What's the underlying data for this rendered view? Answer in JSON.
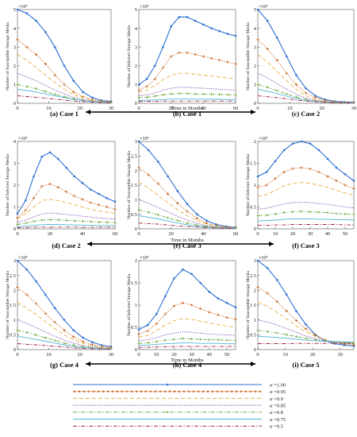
{
  "figure": {
    "time_label": "Time in Months",
    "legend": {
      "symbol": "α",
      "entries": [
        {
          "value": "=1.00",
          "color": "#2e6fd3",
          "style": "solid-circle"
        },
        {
          "value": "=0.95",
          "color": "#c55a11",
          "style": "dot-star"
        },
        {
          "value": "=0.9",
          "color": "#e8b040",
          "style": "dash"
        },
        {
          "value": "=0.85",
          "color": "#7030a0",
          "style": "dot"
        },
        {
          "value": "=0.8",
          "color": "#70ad47",
          "style": "dashdot-star"
        },
        {
          "value": "=0.75",
          "color": "#4fb6d8",
          "style": "solid"
        },
        {
          "value": "=0.5",
          "color": "#a02040",
          "style": "dashdot"
        }
      ]
    }
  },
  "chart_data": [
    {
      "id": "a",
      "caption": "(a) Case 1",
      "type": "line",
      "ylabel": "Number of Susceptible Storage Media",
      "exponent": "×10⁴",
      "xlim": [
        0,
        30
      ],
      "ylim": [
        0,
        5
      ],
      "xticks": [
        0,
        10,
        20,
        30
      ],
      "yticks": [
        0,
        1,
        2,
        3,
        4,
        5
      ],
      "kind": "decay",
      "x": [
        0,
        3,
        6,
        9,
        12,
        15,
        18,
        21,
        24,
        27,
        30
      ],
      "series": [
        [
          5.0,
          4.8,
          4.4,
          3.8,
          3.0,
          2.0,
          1.2,
          0.6,
          0.3,
          0.15,
          0.1
        ],
        [
          3.4,
          3.0,
          2.6,
          2.1,
          1.5,
          1.0,
          0.6,
          0.35,
          0.2,
          0.12,
          0.08
        ],
        [
          2.6,
          2.3,
          1.9,
          1.5,
          1.1,
          0.75,
          0.45,
          0.3,
          0.18,
          0.1,
          0.07
        ],
        [
          1.6,
          1.4,
          1.2,
          0.95,
          0.7,
          0.5,
          0.32,
          0.2,
          0.13,
          0.08,
          0.05
        ],
        [
          1.0,
          0.9,
          0.78,
          0.63,
          0.48,
          0.35,
          0.24,
          0.16,
          0.1,
          0.07,
          0.04
        ],
        [
          0.75,
          0.68,
          0.6,
          0.5,
          0.4,
          0.3,
          0.2,
          0.14,
          0.09,
          0.06,
          0.04
        ],
        [
          0.4,
          0.36,
          0.32,
          0.27,
          0.22,
          0.17,
          0.12,
          0.09,
          0.06,
          0.04,
          0.03
        ]
      ]
    },
    {
      "id": "b",
      "caption": "(b) Case 1",
      "type": "line",
      "ylabel": "Number of Infected Storage Media",
      "exponent": "×10⁴",
      "xlim": [
        0,
        60
      ],
      "ylim": [
        0,
        5
      ],
      "xticks": [
        0,
        20,
        40,
        60
      ],
      "yticks": [
        0,
        1,
        2,
        3,
        4,
        5
      ],
      "kind": "hump",
      "x": [
        0,
        5,
        10,
        15,
        20,
        25,
        30,
        35,
        40,
        45,
        50,
        55,
        60
      ],
      "series": [
        [
          1.0,
          1.3,
          2.0,
          3.0,
          4.1,
          4.6,
          4.6,
          4.4,
          4.2,
          4.0,
          3.85,
          3.7,
          3.6
        ],
        [
          0.7,
          0.9,
          1.3,
          1.9,
          2.5,
          2.7,
          2.7,
          2.6,
          2.5,
          2.4,
          2.3,
          2.2,
          2.1
        ],
        [
          0.6,
          0.7,
          0.95,
          1.25,
          1.5,
          1.6,
          1.6,
          1.55,
          1.5,
          1.45,
          1.4,
          1.35,
          1.3
        ],
        [
          0.4,
          0.45,
          0.55,
          0.7,
          0.8,
          0.85,
          0.85,
          0.82,
          0.8,
          0.78,
          0.75,
          0.73,
          0.7
        ],
        [
          0.3,
          0.32,
          0.38,
          0.45,
          0.5,
          0.52,
          0.52,
          0.5,
          0.49,
          0.48,
          0.47,
          0.46,
          0.45
        ],
        [
          0.15,
          0.16,
          0.18,
          0.2,
          0.22,
          0.23,
          0.23,
          0.22,
          0.22,
          0.21,
          0.21,
          0.2,
          0.2
        ],
        [
          0.1,
          0.1,
          0.11,
          0.12,
          0.12,
          0.12,
          0.12,
          0.12,
          0.12,
          0.12,
          0.12,
          0.12,
          0.12
        ]
      ]
    },
    {
      "id": "c",
      "caption": "(c) Case 2",
      "type": "line",
      "ylabel": "Number of Susceptible Storage Media",
      "exponent": "×10⁴",
      "xlim": [
        0,
        30
      ],
      "ylim": [
        0,
        5
      ],
      "xticks": [
        0,
        10,
        20,
        30
      ],
      "yticks": [
        0,
        1,
        2,
        3,
        4,
        5
      ],
      "kind": "decay",
      "x": [
        0,
        3,
        6,
        9,
        12,
        15,
        18,
        21,
        24,
        27,
        30
      ],
      "series": [
        [
          5.0,
          4.4,
          3.5,
          2.5,
          1.5,
          0.8,
          0.4,
          0.2,
          0.1,
          0.07,
          0.05
        ],
        [
          3.4,
          2.9,
          2.3,
          1.6,
          1.0,
          0.55,
          0.3,
          0.15,
          0.08,
          0.05,
          0.04
        ],
        [
          2.6,
          2.2,
          1.7,
          1.2,
          0.75,
          0.4,
          0.22,
          0.12,
          0.07,
          0.05,
          0.03
        ],
        [
          1.6,
          1.35,
          1.05,
          0.75,
          0.48,
          0.28,
          0.15,
          0.09,
          0.05,
          0.04,
          0.03
        ],
        [
          1.0,
          0.85,
          0.68,
          0.5,
          0.33,
          0.2,
          0.12,
          0.07,
          0.04,
          0.03,
          0.02
        ],
        [
          0.75,
          0.64,
          0.52,
          0.38,
          0.25,
          0.16,
          0.1,
          0.06,
          0.04,
          0.03,
          0.02
        ],
        [
          0.4,
          0.35,
          0.3,
          0.24,
          0.17,
          0.12,
          0.08,
          0.05,
          0.03,
          0.02,
          0.02
        ]
      ]
    },
    {
      "id": "d",
      "caption": "(d) Case 2",
      "type": "line",
      "ylabel": "Number of Infected Storage Media",
      "exponent": "×10⁴",
      "xlim": [
        0,
        60
      ],
      "ylim": [
        0,
        4
      ],
      "xticks": [
        0,
        20,
        40,
        60
      ],
      "yticks": [
        0,
        1,
        2,
        3,
        4
      ],
      "kind": "hump",
      "x": [
        0,
        5,
        10,
        15,
        20,
        25,
        30,
        35,
        40,
        45,
        50,
        55,
        60
      ],
      "series": [
        [
          0.7,
          1.3,
          2.4,
          3.3,
          3.5,
          3.2,
          2.8,
          2.4,
          2.1,
          1.8,
          1.6,
          1.4,
          1.25
        ],
        [
          0.5,
          0.85,
          1.4,
          1.95,
          2.05,
          1.9,
          1.7,
          1.5,
          1.35,
          1.2,
          1.1,
          1.0,
          0.9
        ],
        [
          0.45,
          0.7,
          1.0,
          1.3,
          1.35,
          1.3,
          1.2,
          1.1,
          1.0,
          0.9,
          0.82,
          0.76,
          0.7
        ],
        [
          0.3,
          0.4,
          0.55,
          0.68,
          0.72,
          0.7,
          0.66,
          0.62,
          0.58,
          0.54,
          0.5,
          0.47,
          0.45
        ],
        [
          0.2,
          0.26,
          0.34,
          0.4,
          0.42,
          0.41,
          0.39,
          0.37,
          0.35,
          0.33,
          0.31,
          0.3,
          0.28
        ],
        [
          0.1,
          0.13,
          0.16,
          0.19,
          0.2,
          0.2,
          0.19,
          0.18,
          0.17,
          0.16,
          0.15,
          0.15,
          0.14
        ],
        [
          0.05,
          0.06,
          0.07,
          0.08,
          0.08,
          0.08,
          0.08,
          0.08,
          0.07,
          0.07,
          0.07,
          0.07,
          0.07
        ]
      ]
    },
    {
      "id": "e",
      "caption": "(e) Case 3",
      "type": "line",
      "ylabel": "Number of Susceptible Storage Media",
      "exponent": "×10⁴",
      "xlim": [
        0,
        60
      ],
      "ylim": [
        0,
        3
      ],
      "xticks": [
        0,
        20,
        40,
        60
      ],
      "yticks": [
        0,
        0.5,
        1,
        1.5,
        2,
        2.5,
        3
      ],
      "kind": "decay",
      "x": [
        0,
        6,
        12,
        18,
        24,
        30,
        36,
        42,
        48,
        54,
        60
      ],
      "series": [
        [
          3.0,
          2.7,
          2.3,
          1.8,
          1.3,
          0.85,
          0.5,
          0.28,
          0.15,
          0.08,
          0.05
        ],
        [
          2.1,
          1.85,
          1.55,
          1.2,
          0.88,
          0.6,
          0.36,
          0.2,
          0.11,
          0.06,
          0.04
        ],
        [
          1.6,
          1.4,
          1.15,
          0.9,
          0.66,
          0.45,
          0.28,
          0.16,
          0.09,
          0.05,
          0.03
        ],
        [
          1.0,
          0.88,
          0.73,
          0.58,
          0.43,
          0.3,
          0.19,
          0.11,
          0.06,
          0.04,
          0.02
        ],
        [
          0.65,
          0.57,
          0.48,
          0.38,
          0.29,
          0.2,
          0.13,
          0.08,
          0.05,
          0.03,
          0.02
        ],
        [
          0.45,
          0.4,
          0.34,
          0.27,
          0.2,
          0.14,
          0.09,
          0.06,
          0.04,
          0.02,
          0.02
        ],
        [
          0.2,
          0.18,
          0.16,
          0.13,
          0.1,
          0.08,
          0.06,
          0.04,
          0.03,
          0.02,
          0.01
        ]
      ]
    },
    {
      "id": "f",
      "caption": "(f) Case 3",
      "type": "line",
      "ylabel": "Number of Infected Storage Media",
      "exponent": "×10⁴",
      "xlim": [
        0,
        55
      ],
      "ylim": [
        0,
        2
      ],
      "xticks": [
        0,
        10,
        20,
        30,
        40,
        50
      ],
      "yticks": [
        0,
        0.5,
        1,
        1.5,
        2
      ],
      "kind": "hump",
      "x": [
        0,
        5,
        10,
        15,
        20,
        25,
        30,
        35,
        40,
        45,
        50,
        55
      ],
      "series": [
        [
          1.2,
          1.3,
          1.55,
          1.8,
          1.95,
          2.0,
          1.95,
          1.8,
          1.6,
          1.4,
          1.25,
          1.1
        ],
        [
          0.95,
          1.0,
          1.15,
          1.3,
          1.38,
          1.4,
          1.37,
          1.3,
          1.2,
          1.1,
          1.0,
          0.92
        ],
        [
          0.75,
          0.78,
          0.88,
          0.98,
          1.04,
          1.06,
          1.04,
          1.0,
          0.95,
          0.88,
          0.82,
          0.77
        ],
        [
          0.45,
          0.47,
          0.52,
          0.57,
          0.6,
          0.61,
          0.6,
          0.58,
          0.56,
          0.53,
          0.5,
          0.48
        ],
        [
          0.3,
          0.31,
          0.34,
          0.37,
          0.39,
          0.4,
          0.39,
          0.38,
          0.37,
          0.35,
          0.34,
          0.33
        ],
        [
          0.18,
          0.19,
          0.2,
          0.22,
          0.23,
          0.23,
          0.23,
          0.22,
          0.22,
          0.21,
          0.21,
          0.2
        ],
        [
          0.08,
          0.08,
          0.09,
          0.09,
          0.1,
          0.1,
          0.1,
          0.1,
          0.1,
          0.1,
          0.09,
          0.09
        ]
      ]
    },
    {
      "id": "g",
      "caption": "(g) Case 4",
      "type": "line",
      "ylabel": "Number of Susceptible Storage Media",
      "exponent": "×10⁴",
      "xlim": [
        0,
        30
      ],
      "ylim": [
        0,
        3
      ],
      "xticks": [
        0,
        10,
        20,
        30
      ],
      "yticks": [
        0,
        0.5,
        1,
        1.5,
        2,
        2.5,
        3
      ],
      "kind": "decay",
      "x": [
        0,
        3,
        6,
        9,
        12,
        15,
        18,
        21,
        24,
        27,
        30
      ],
      "series": [
        [
          3.0,
          2.7,
          2.3,
          1.85,
          1.4,
          1.0,
          0.65,
          0.4,
          0.25,
          0.15,
          0.1
        ],
        [
          2.1,
          1.85,
          1.55,
          1.22,
          0.92,
          0.65,
          0.43,
          0.27,
          0.17,
          0.1,
          0.07
        ],
        [
          1.6,
          1.4,
          1.18,
          0.94,
          0.7,
          0.5,
          0.33,
          0.21,
          0.13,
          0.08,
          0.05
        ],
        [
          1.0,
          0.88,
          0.74,
          0.59,
          0.45,
          0.32,
          0.22,
          0.14,
          0.09,
          0.06,
          0.04
        ],
        [
          0.65,
          0.58,
          0.49,
          0.4,
          0.31,
          0.22,
          0.15,
          0.1,
          0.06,
          0.04,
          0.03
        ],
        [
          0.45,
          0.4,
          0.34,
          0.28,
          0.22,
          0.16,
          0.11,
          0.07,
          0.05,
          0.03,
          0.02
        ],
        [
          0.2,
          0.18,
          0.16,
          0.14,
          0.11,
          0.09,
          0.06,
          0.04,
          0.03,
          0.02,
          0.02
        ]
      ]
    },
    {
      "id": "h",
      "caption": "(h) Case 4",
      "type": "line",
      "ylabel": "Number of Infected Storage Media",
      "exponent": "×10⁴",
      "xlim": [
        0,
        55
      ],
      "ylim": [
        0,
        2
      ],
      "xticks": [
        0,
        10,
        20,
        30,
        40,
        50
      ],
      "yticks": [
        0,
        0.5,
        1,
        1.5,
        2
      ],
      "kind": "hump",
      "x": [
        0,
        5,
        10,
        15,
        20,
        25,
        30,
        35,
        40,
        45,
        50,
        55
      ],
      "series": [
        [
          0.45,
          0.55,
          0.8,
          1.2,
          1.6,
          1.8,
          1.7,
          1.5,
          1.3,
          1.15,
          1.05,
          0.95
        ],
        [
          0.35,
          0.42,
          0.58,
          0.8,
          0.98,
          1.05,
          1.0,
          0.92,
          0.84,
          0.78,
          0.72,
          0.68
        ],
        [
          0.28,
          0.32,
          0.42,
          0.55,
          0.65,
          0.7,
          0.68,
          0.64,
          0.6,
          0.56,
          0.53,
          0.5
        ],
        [
          0.2,
          0.22,
          0.27,
          0.33,
          0.37,
          0.4,
          0.39,
          0.37,
          0.35,
          0.34,
          0.33,
          0.32
        ],
        [
          0.14,
          0.15,
          0.18,
          0.21,
          0.23,
          0.25,
          0.24,
          0.23,
          0.22,
          0.22,
          0.21,
          0.21
        ],
        [
          0.1,
          0.1,
          0.12,
          0.13,
          0.14,
          0.15,
          0.15,
          0.14,
          0.14,
          0.14,
          0.13,
          0.13
        ],
        [
          0.05,
          0.05,
          0.06,
          0.06,
          0.07,
          0.07,
          0.07,
          0.07,
          0.07,
          0.07,
          0.07,
          0.07
        ]
      ]
    },
    {
      "id": "i",
      "caption": "(i) Case 5",
      "type": "line",
      "ylabel": "Number of Susceptible Storage Media",
      "exponent": "×10⁴",
      "xlim": [
        0,
        35
      ],
      "ylim": [
        0,
        3
      ],
      "xticks": [
        0,
        10,
        20,
        30
      ],
      "yticks": [
        0,
        0.5,
        1,
        1.5,
        2,
        2.5,
        3
      ],
      "kind": "decay",
      "x": [
        0,
        3.5,
        7,
        10.5,
        14,
        17.5,
        21,
        24.5,
        28,
        31.5,
        35
      ],
      "series": [
        [
          3.0,
          2.75,
          2.35,
          1.85,
          1.3,
          0.85,
          0.5,
          0.3,
          0.2,
          0.15,
          0.12
        ],
        [
          2.1,
          1.9,
          1.62,
          1.3,
          0.98,
          0.7,
          0.48,
          0.33,
          0.24,
          0.19,
          0.16
        ],
        [
          1.6,
          1.46,
          1.26,
          1.04,
          0.8,
          0.6,
          0.44,
          0.33,
          0.26,
          0.22,
          0.19
        ],
        [
          1.0,
          0.93,
          0.83,
          0.71,
          0.58,
          0.46,
          0.37,
          0.3,
          0.26,
          0.23,
          0.21
        ],
        [
          0.65,
          0.61,
          0.56,
          0.5,
          0.44,
          0.38,
          0.33,
          0.29,
          0.26,
          0.24,
          0.23
        ],
        [
          0.45,
          0.43,
          0.41,
          0.38,
          0.35,
          0.32,
          0.3,
          0.28,
          0.27,
          0.26,
          0.25
        ],
        [
          0.2,
          0.2,
          0.2,
          0.2,
          0.21,
          0.21,
          0.21,
          0.21,
          0.21,
          0.21,
          0.21
        ]
      ]
    }
  ]
}
